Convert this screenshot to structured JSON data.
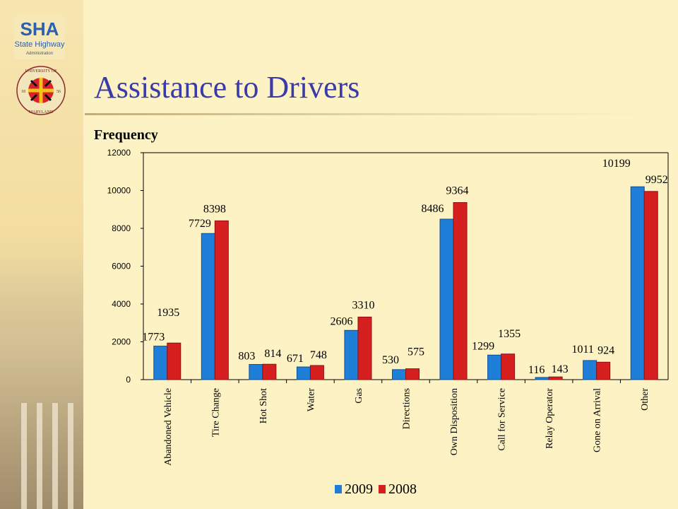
{
  "header": {
    "title": "Assistance to Drivers",
    "logo_sha": {
      "text": "SHA",
      "subtext": "State Highway",
      "subtext2": "Administration"
    },
    "logo_umd": {
      "top_text": "UNIVERSITY OF",
      "bottom_text": "MARYLAND",
      "left_year": "18",
      "right_year": "56"
    }
  },
  "colors": {
    "series_2009": "#1f7fd8",
    "series_2008": "#d61f1f",
    "title": "#3a3aa8",
    "background": "#fdf2c4"
  },
  "chart_data": {
    "type": "bar",
    "title": "",
    "xlabel": "",
    "ylabel": "Frequency",
    "ylim": [
      0,
      12000
    ],
    "yticks": [
      0,
      2000,
      4000,
      6000,
      8000,
      10000,
      12000
    ],
    "grid": false,
    "legend_position": "bottom",
    "categories": [
      "Abandoned Vehicle",
      "Tire Change",
      "Hot Shot",
      "Water",
      "Gas",
      "Directions",
      "Own Disposition",
      "Call for Service",
      "Relay Operator",
      "Gone on Arrival",
      "Other"
    ],
    "series": [
      {
        "name": "2009",
        "values": [
          1773,
          7729,
          803,
          671,
          2606,
          530,
          8486,
          1299,
          116,
          1011,
          10199
        ]
      },
      {
        "name": "2008",
        "values": [
          1935,
          8398,
          814,
          748,
          3310,
          575,
          9364,
          1355,
          143,
          924,
          9952
        ]
      }
    ]
  }
}
